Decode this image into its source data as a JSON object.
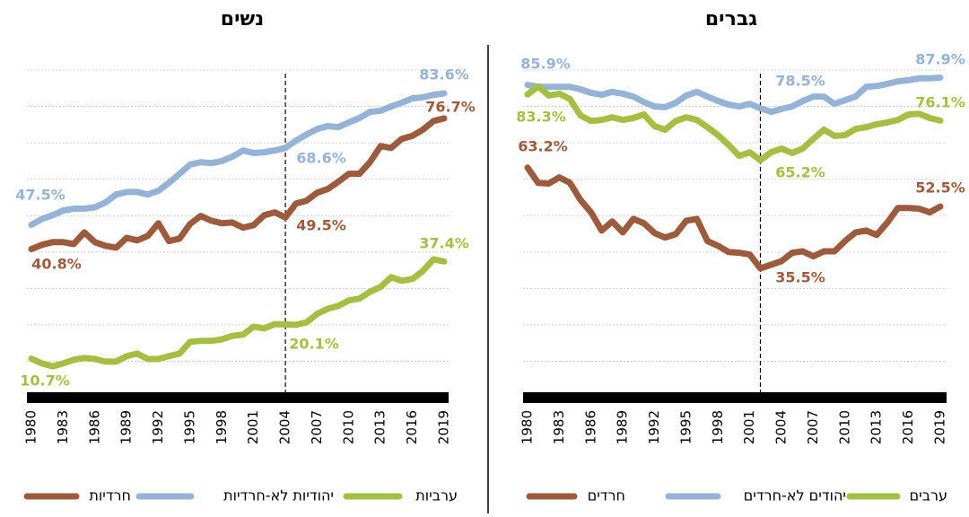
{
  "chart_data": [
    {
      "type": "line",
      "title": "גברים",
      "x": [
        1980,
        1981,
        1982,
        1983,
        1984,
        1985,
        1986,
        1987,
        1988,
        1989,
        1990,
        1991,
        1992,
        1993,
        1994,
        1995,
        1996,
        1997,
        1998,
        1999,
        2000,
        2001,
        2002,
        2003,
        2004,
        2005,
        2006,
        2007,
        2008,
        2009,
        2010,
        2011,
        2012,
        2013,
        2014,
        2015,
        2016,
        2017,
        2018,
        2019
      ],
      "xlim": [
        1980,
        2019
      ],
      "xticks": [
        1980,
        1983,
        1986,
        1989,
        1992,
        1995,
        1998,
        2001,
        2004,
        2007,
        2010,
        2013,
        2016,
        2019
      ],
      "ylim": [
        0,
        90
      ],
      "yticks": [
        0,
        10,
        20,
        30,
        40,
        50,
        60,
        70,
        80,
        90
      ],
      "grid": true,
      "vline": 2002,
      "series": [
        {
          "name": "חרדים",
          "color": "#9c5b3c",
          "values": [
            63.2,
            59.0,
            58.8,
            60.5,
            59.0,
            54.3,
            50.9,
            45.9,
            48.4,
            45.4,
            49.1,
            47.9,
            45.2,
            44.0,
            44.9,
            48.6,
            49.1,
            43.0,
            41.7,
            40.0,
            39.8,
            39.3,
            35.5,
            36.5,
            37.5,
            39.8,
            40.2,
            38.8,
            40.2,
            40.2,
            43.0,
            45.4,
            45.9,
            44.7,
            48.1,
            52.1,
            52.1,
            51.9,
            50.9,
            52.5
          ],
          "value_labels": [
            "63.2%",
            null,
            null,
            null,
            null,
            null,
            null,
            null,
            null,
            null,
            null,
            null,
            null,
            null,
            null,
            null,
            null,
            null,
            null,
            null,
            null,
            null,
            "35.5%",
            null,
            null,
            null,
            null,
            null,
            null,
            null,
            null,
            null,
            null,
            null,
            null,
            null,
            null,
            null,
            null,
            "52.5%"
          ]
        },
        {
          "name": "יהודים לא-חרדים",
          "color": "#95b3d7",
          "values": [
            85.9,
            85.4,
            85.4,
            85.4,
            85.4,
            84.7,
            83.7,
            83.2,
            84.0,
            83.5,
            82.7,
            81.2,
            80.0,
            79.8,
            81.0,
            83.0,
            84.0,
            82.7,
            81.5,
            80.5,
            80.0,
            80.7,
            79.5,
            78.5,
            79.3,
            80.0,
            81.5,
            82.7,
            82.7,
            80.7,
            81.7,
            82.7,
            85.4,
            85.6,
            86.2,
            86.9,
            87.2,
            87.7,
            87.7,
            87.9
          ],
          "value_labels": [
            "85.9%",
            null,
            null,
            null,
            null,
            null,
            null,
            null,
            null,
            null,
            null,
            null,
            null,
            null,
            null,
            null,
            null,
            null,
            null,
            null,
            null,
            null,
            null,
            "78.5%",
            null,
            null,
            null,
            null,
            null,
            null,
            null,
            null,
            null,
            null,
            null,
            null,
            null,
            null,
            null,
            "87.9%"
          ]
        },
        {
          "name": "ערבים",
          "color": "#a5bf44",
          "values": [
            83.3,
            85.5,
            83.0,
            83.5,
            82.0,
            77.5,
            76.0,
            76.3,
            77.0,
            76.3,
            76.8,
            77.8,
            74.6,
            73.6,
            76.0,
            77.0,
            76.3,
            74.3,
            72.1,
            69.4,
            66.4,
            67.4,
            65.2,
            67.4,
            68.4,
            67.2,
            68.4,
            71.1,
            73.6,
            71.9,
            72.1,
            73.8,
            74.3,
            75.1,
            75.6,
            76.3,
            77.8,
            78.0,
            76.8,
            76.1
          ],
          "value_labels": [
            "83.3%",
            null,
            null,
            null,
            null,
            null,
            null,
            null,
            null,
            null,
            null,
            null,
            null,
            null,
            null,
            null,
            null,
            null,
            null,
            null,
            null,
            null,
            "65.2%",
            null,
            null,
            null,
            null,
            null,
            null,
            null,
            null,
            null,
            null,
            null,
            null,
            null,
            null,
            null,
            null,
            "76.1%"
          ]
        }
      ]
    },
    {
      "type": "line",
      "title": "נשים",
      "x": [
        1980,
        1981,
        1982,
        1983,
        1984,
        1985,
        1986,
        1987,
        1988,
        1989,
        1990,
        1991,
        1992,
        1993,
        1994,
        1995,
        1996,
        1997,
        1998,
        1999,
        2000,
        2001,
        2002,
        2003,
        2004,
        2005,
        2006,
        2007,
        2008,
        2009,
        2010,
        2011,
        2012,
        2013,
        2014,
        2015,
        2016,
        2017,
        2018,
        2019
      ],
      "xlim": [
        1980,
        2019
      ],
      "xticks": [
        1980,
        1983,
        1986,
        1989,
        1992,
        1995,
        1998,
        2001,
        2004,
        2007,
        2010,
        2013,
        2016,
        2019
      ],
      "ylim": [
        0,
        90
      ],
      "yticks": [
        0,
        10,
        20,
        30,
        40,
        50,
        60,
        70,
        80,
        90
      ],
      "grid": true,
      "vline": 2004,
      "series": [
        {
          "name": "חרדיות",
          "color": "#9c5b3c",
          "values": [
            40.8,
            42.0,
            42.7,
            42.7,
            42.2,
            45.4,
            42.7,
            41.7,
            41.2,
            43.9,
            43.2,
            44.4,
            47.9,
            43.0,
            43.7,
            47.7,
            49.9,
            48.6,
            47.9,
            48.1,
            46.7,
            47.4,
            50.1,
            50.9,
            49.5,
            53.3,
            54.1,
            56.3,
            57.3,
            59.3,
            61.5,
            61.5,
            64.7,
            69.1,
            68.6,
            71.1,
            71.9,
            73.6,
            76.0,
            76.7
          ],
          "value_labels": [
            "40.8%",
            null,
            null,
            null,
            null,
            null,
            null,
            null,
            null,
            null,
            null,
            null,
            null,
            null,
            null,
            null,
            null,
            null,
            null,
            null,
            null,
            null,
            null,
            null,
            "49.5%",
            null,
            null,
            null,
            null,
            null,
            null,
            null,
            null,
            null,
            null,
            null,
            null,
            null,
            null,
            "76.7%"
          ]
        },
        {
          "name": "יהודיות לא-חרדיות",
          "color": "#95b3d7",
          "values": [
            47.5,
            49.1,
            50.1,
            51.4,
            51.9,
            51.9,
            52.3,
            53.6,
            55.8,
            56.5,
            56.5,
            55.8,
            56.8,
            59.0,
            61.5,
            64.0,
            64.7,
            64.4,
            65.0,
            66.2,
            67.9,
            67.2,
            67.4,
            67.9,
            68.6,
            70.6,
            72.3,
            73.8,
            74.6,
            74.3,
            75.6,
            76.8,
            78.5,
            78.8,
            80.0,
            81.0,
            82.2,
            82.5,
            83.2,
            83.6
          ],
          "value_labels": [
            "47.5%",
            null,
            null,
            null,
            null,
            null,
            null,
            null,
            null,
            null,
            null,
            null,
            null,
            null,
            null,
            null,
            null,
            null,
            null,
            null,
            null,
            null,
            null,
            null,
            "68.6%",
            null,
            null,
            null,
            null,
            null,
            null,
            null,
            null,
            null,
            null,
            null,
            null,
            null,
            null,
            "83.6%"
          ]
        },
        {
          "name": "ערביות",
          "color": "#a5bf44",
          "values": [
            10.7,
            9.4,
            8.6,
            9.4,
            10.4,
            10.9,
            10.6,
            9.9,
            9.9,
            11.4,
            12.1,
            10.6,
            10.6,
            11.4,
            12.1,
            15.3,
            15.6,
            15.6,
            16.0,
            17.0,
            17.3,
            19.5,
            19.0,
            20.2,
            20.1,
            20.0,
            20.7,
            23.0,
            24.4,
            25.2,
            26.7,
            27.2,
            29.1,
            30.4,
            33.1,
            32.1,
            32.6,
            34.8,
            38.0,
            37.4
          ],
          "value_labels": [
            "10.7%",
            null,
            null,
            null,
            null,
            null,
            null,
            null,
            null,
            null,
            null,
            null,
            null,
            null,
            null,
            null,
            null,
            null,
            null,
            null,
            null,
            null,
            null,
            null,
            "20.1%",
            null,
            null,
            null,
            null,
            null,
            null,
            null,
            null,
            null,
            null,
            null,
            null,
            null,
            null,
            "37.4%"
          ]
        }
      ]
    }
  ]
}
